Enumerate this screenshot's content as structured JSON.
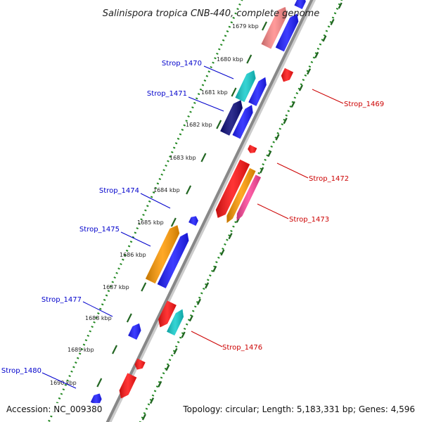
{
  "title": "Salinispora tropica CNB-440, complete genome",
  "accession": "Accession: NC_009380",
  "topology": "Topology: circular; Length: 5,183,331 bp; Genes: 4,596",
  "scale_unit": "kbp",
  "ticks": [
    "1679 kbp",
    "1680 kbp",
    "1681 kbp",
    "1682 kbp",
    "1683 kbp",
    "1684 kbp",
    "1685 kbp",
    "1686 kbp",
    "1687 kbp",
    "1688 kbp",
    "1689 kbp",
    "1690 kbp"
  ],
  "colors": {
    "reverse_label": "#0000cc",
    "forward_label": "#cc0000",
    "backbone": "#888888",
    "dotted_track": "#228822",
    "red": "#ff1111",
    "blue": "#1a1aff",
    "navy": "#0a0a7a",
    "cyan": "#11cccc",
    "orange": "#ff9900",
    "pink": "#ff4499",
    "lightred": "#ff8888"
  },
  "genes": [
    {
      "name": "Strop_1469",
      "strand": "forward"
    },
    {
      "name": "Strop_1470",
      "strand": "reverse"
    },
    {
      "name": "Strop_1471",
      "strand": "reverse"
    },
    {
      "name": "Strop_1472",
      "strand": "forward"
    },
    {
      "name": "Strop_1473",
      "strand": "forward"
    },
    {
      "name": "Strop_1474",
      "strand": "reverse"
    },
    {
      "name": "Strop_1475",
      "strand": "reverse"
    },
    {
      "name": "Strop_1476",
      "strand": "forward"
    },
    {
      "name": "Strop_1477",
      "strand": "reverse"
    },
    {
      "name": "Strop_1480",
      "strand": "reverse"
    }
  ]
}
